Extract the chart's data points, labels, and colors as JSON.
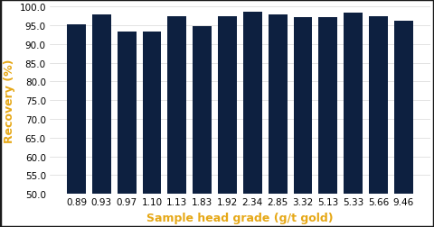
{
  "categories": [
    "0.89",
    "0.93",
    "0.97",
    "1.10",
    "1.13",
    "1.83",
    "1.92",
    "2.34",
    "2.85",
    "3.32",
    "5.13",
    "5.33",
    "5.66",
    "9.46"
  ],
  "values": [
    95.3,
    97.8,
    93.3,
    93.4,
    97.3,
    94.8,
    97.3,
    98.7,
    97.8,
    97.2,
    97.2,
    98.3,
    97.3,
    96.2
  ],
  "bar_color": "#0d2040",
  "ylabel": "Recovery (%)",
  "xlabel": "Sample head grade (g/t gold)",
  "ylabel_color": "#e6a817",
  "xlabel_color": "#e6a817",
  "ylim": [
    50.0,
    100.0
  ],
  "yticks": [
    50.0,
    55.0,
    60.0,
    65.0,
    70.0,
    75.0,
    80.0,
    85.0,
    90.0,
    95.0,
    100.0
  ],
  "background_color": "#ffffff",
  "grid_color": "#d8d8d8",
  "border_color": "#1a1a1a",
  "tick_label_fontsize": 7.5,
  "axis_label_fontsize": 9,
  "bar_width": 0.75
}
